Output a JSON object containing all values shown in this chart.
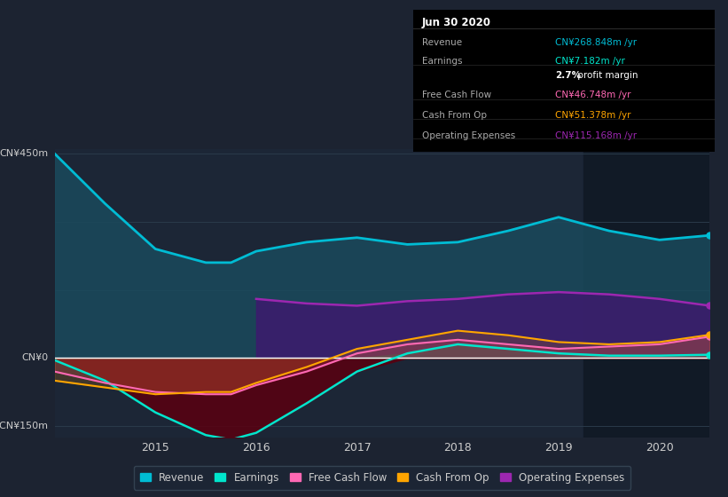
{
  "bg_color": "#1c2331",
  "plot_bg_color": "#1c2636",
  "x_years": [
    2014.0,
    2014.5,
    2015.0,
    2015.5,
    2015.75,
    2016.0,
    2016.5,
    2017.0,
    2017.5,
    2018.0,
    2018.5,
    2019.0,
    2019.5,
    2020.0,
    2020.5
  ],
  "revenue": [
    450,
    340,
    240,
    210,
    210,
    235,
    255,
    265,
    250,
    255,
    280,
    310,
    280,
    260,
    270
  ],
  "earnings": [
    -5,
    -50,
    -120,
    -170,
    -180,
    -165,
    -100,
    -30,
    10,
    30,
    20,
    10,
    5,
    5,
    7
  ],
  "free_cash_flow": [
    -30,
    -55,
    -75,
    -80,
    -80,
    -60,
    -30,
    10,
    30,
    40,
    30,
    20,
    25,
    30,
    47
  ],
  "cash_from_op": [
    -50,
    -65,
    -80,
    -75,
    -75,
    -55,
    -20,
    20,
    40,
    60,
    50,
    35,
    30,
    35,
    51
  ],
  "operating_expenses": [
    null,
    null,
    null,
    null,
    null,
    130,
    120,
    115,
    125,
    130,
    140,
    145,
    140,
    130,
    115
  ],
  "ylim": [
    -175,
    460
  ],
  "yticks": [
    -150,
    0,
    450
  ],
  "ytick_labels": [
    "-CN¥150m",
    "CN¥0",
    "CN¥450m"
  ],
  "xtick_years": [
    2015,
    2016,
    2017,
    2018,
    2019,
    2020
  ],
  "revenue_color": "#00bcd4",
  "revenue_fill": "#1a4a5c",
  "earnings_color": "#00e5cc",
  "free_cash_flow_color": "#ff69b4",
  "cash_from_op_color": "#ffa500",
  "operating_expenses_color": "#9c27b0",
  "operating_expenses_fill": "#3d1a6e",
  "grid_color": "#2a3a4a",
  "text_color": "#cccccc",
  "zero_line_color": "#ffffff",
  "dark_shade_start": 2019.25,
  "legend_items": [
    {
      "label": "Revenue",
      "color": "#00bcd4"
    },
    {
      "label": "Earnings",
      "color": "#00e5cc"
    },
    {
      "label": "Free Cash Flow",
      "color": "#ff69b4"
    },
    {
      "label": "Cash From Op",
      "color": "#ffa500"
    },
    {
      "label": "Operating Expenses",
      "color": "#9c27b0"
    }
  ],
  "info_box": {
    "date": "Jun 30 2020",
    "rows": [
      {
        "label": "Revenue",
        "value": "CN¥268.848m /yr",
        "value_color": "#00bcd4"
      },
      {
        "label": "Earnings",
        "value": "CN¥7.182m /yr",
        "value_color": "#00e5cc"
      },
      {
        "label": "",
        "value": "2.7% profit margin",
        "value_color": "#ffffff"
      },
      {
        "label": "Free Cash Flow",
        "value": "CN¥46.748m /yr",
        "value_color": "#ff69b4"
      },
      {
        "label": "Cash From Op",
        "value": "CN¥51.378m /yr",
        "value_color": "#ffa500"
      },
      {
        "label": "Operating Expenses",
        "value": "CN¥115.168m /yr",
        "value_color": "#9c27b0"
      }
    ]
  }
}
